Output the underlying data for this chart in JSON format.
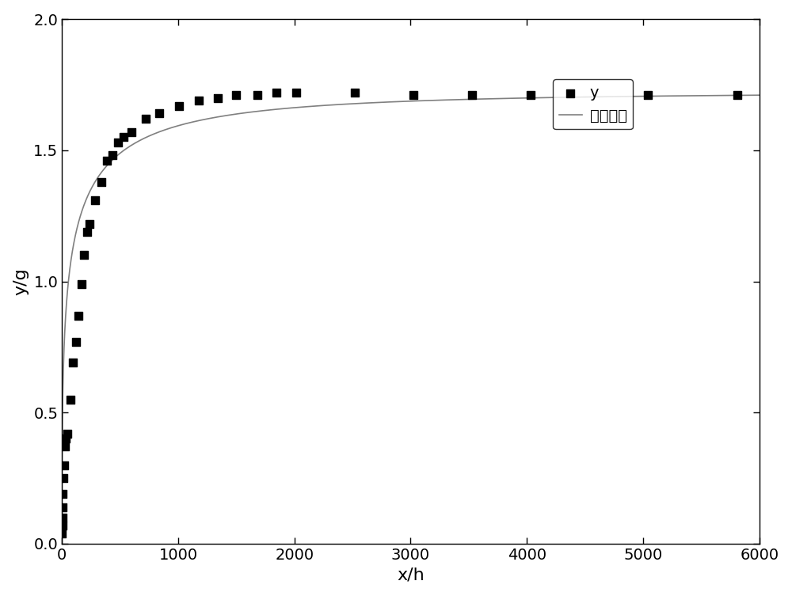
{
  "scatter_x": [
    1,
    2,
    3,
    5,
    8,
    12,
    18,
    24,
    36,
    48,
    72,
    96,
    120,
    144,
    168,
    192,
    216,
    240,
    288,
    336,
    384,
    432,
    480,
    528,
    600,
    720,
    840,
    1008,
    1176,
    1344,
    1500,
    1680,
    1848,
    2016,
    2520,
    3024,
    3528,
    4032,
    5040,
    5808
  ],
  "scatter_y": [
    0.04,
    0.07,
    0.1,
    0.14,
    0.19,
    0.25,
    0.3,
    0.37,
    0.4,
    0.42,
    0.55,
    0.69,
    0.77,
    0.87,
    0.99,
    1.1,
    1.19,
    1.22,
    1.31,
    1.38,
    1.46,
    1.48,
    1.53,
    1.55,
    1.57,
    1.62,
    1.64,
    1.67,
    1.69,
    1.7,
    1.71,
    1.71,
    1.72,
    1.72,
    1.72,
    1.71,
    1.71,
    1.71,
    1.71,
    1.71
  ],
  "xlim": [
    0,
    6000
  ],
  "ylim": [
    0.0,
    2.0
  ],
  "xlabel": "x/h",
  "ylabel": "y/g",
  "legend_label_scatter": "y",
  "legend_label_line": "拟合方程",
  "scatter_color": "#000000",
  "line_color": "#808080",
  "marker": "s",
  "marker_size": 7,
  "line_width": 1.2,
  "xlabel_fontsize": 16,
  "ylabel_fontsize": 16,
  "tick_fontsize": 14,
  "legend_fontsize": 14,
  "background_color": "#ffffff",
  "xticks": [
    0,
    1000,
    2000,
    3000,
    4000,
    5000,
    6000
  ],
  "yticks": [
    0.0,
    0.5,
    1.0,
    1.5,
    2.0
  ]
}
